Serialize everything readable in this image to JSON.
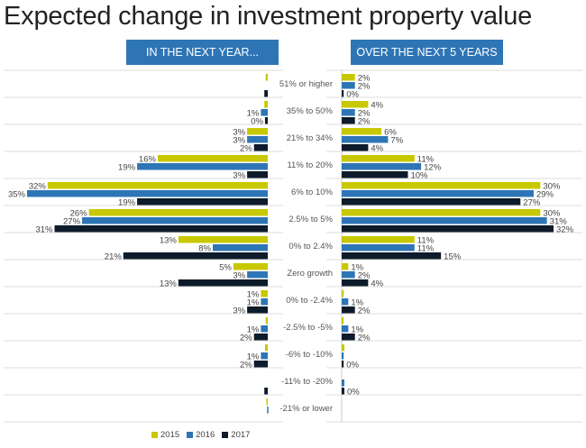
{
  "chart_data": [
    {
      "type": "bar",
      "title": "Expected change in investment property value",
      "panel_title": "IN THE NEXT YEAR...",
      "orientation": "horizontal-left",
      "categories": [
        "51% or higher",
        "35% to 50%",
        "21% to 34%",
        "11% to 20%",
        "6% to 10%",
        "2.5% to 5%",
        "0% to 2.4%",
        "Zero growth",
        "0% to -2.4%",
        "-2.5% to -5%",
        "-6% to -10%",
        "-11% to -20%",
        "-21% or lower"
      ],
      "series": [
        {
          "name": "2015",
          "color": "#C8C800",
          "values": [
            0.3,
            0.5,
            3,
            16,
            32,
            26,
            13,
            5,
            1,
            0.3,
            0.4,
            0,
            0.2
          ],
          "labels": [
            null,
            null,
            "3%",
            "16%",
            "32%",
            "26%",
            "13%",
            "5%",
            "1%",
            null,
            null,
            null,
            null
          ]
        },
        {
          "name": "2016",
          "color": "#2E75B6",
          "values": [
            0,
            1,
            3,
            19,
            35,
            27,
            8,
            3,
            1,
            1,
            1,
            0,
            0.1
          ],
          "labels": [
            null,
            "1%",
            "3%",
            "19%",
            "35%",
            "27%",
            "8%",
            "3%",
            "1%",
            "1%",
            "1%",
            null,
            null
          ]
        },
        {
          "name": "2017",
          "color": "#0D1B2A",
          "values": [
            0.5,
            0.4,
            2,
            3,
            19,
            31,
            21,
            13,
            3,
            2,
            2,
            0.5,
            0
          ],
          "labels": [
            null,
            "0%",
            "2%",
            "3%",
            "19%",
            "31%",
            "21%",
            "13%",
            "3%",
            "2%",
            "2%",
            null,
            null
          ]
        }
      ],
      "xlim": [
        0,
        35
      ],
      "grid": false,
      "legend": "bottom"
    },
    {
      "type": "bar",
      "panel_title": "OVER THE NEXT 5 YEARS",
      "orientation": "horizontal-right",
      "categories": [
        "51% or higher",
        "35% to 50%",
        "21% to 34%",
        "11% to 20%",
        "6% to 10%",
        "2.5% to 5%",
        "0% to 2.4%",
        "Zero growth",
        "0% to -2.4%",
        "-2.5% to -5%",
        "-6% to -10%",
        "-11% to -20%",
        "-21% or lower"
      ],
      "series": [
        {
          "name": "2015",
          "color": "#C8C800",
          "values": [
            2,
            4,
            6,
            11,
            30,
            30,
            11,
            1,
            0.3,
            0.3,
            0.4,
            0,
            0
          ],
          "labels": [
            "2%",
            "4%",
            "6%",
            "11%",
            "30%",
            "30%",
            "11%",
            "1%",
            null,
            null,
            null,
            null,
            null
          ]
        },
        {
          "name": "2016",
          "color": "#2E75B6",
          "values": [
            2,
            2,
            7,
            12,
            29,
            31,
            11,
            2,
            1,
            1,
            0.3,
            0.4,
            0
          ],
          "labels": [
            "2%",
            "2%",
            "7%",
            "12%",
            "29%",
            "31%",
            "11%",
            "2%",
            "1%",
            "1%",
            null,
            null,
            null
          ]
        },
        {
          "name": "2017",
          "color": "#0D1B2A",
          "values": [
            0.3,
            2,
            4,
            10,
            27,
            32,
            15,
            4,
            2,
            2,
            0.3,
            0.4,
            0
          ],
          "labels": [
            "0%",
            "2%",
            "4%",
            "10%",
            "27%",
            "32%",
            "15%",
            "4%",
            "2%",
            "2%",
            "0%",
            "0%",
            null
          ]
        }
      ],
      "xlim": [
        0,
        32
      ],
      "grid": false,
      "legend": "bottom"
    }
  ],
  "legend": [
    "2015",
    "2016",
    "2017"
  ]
}
